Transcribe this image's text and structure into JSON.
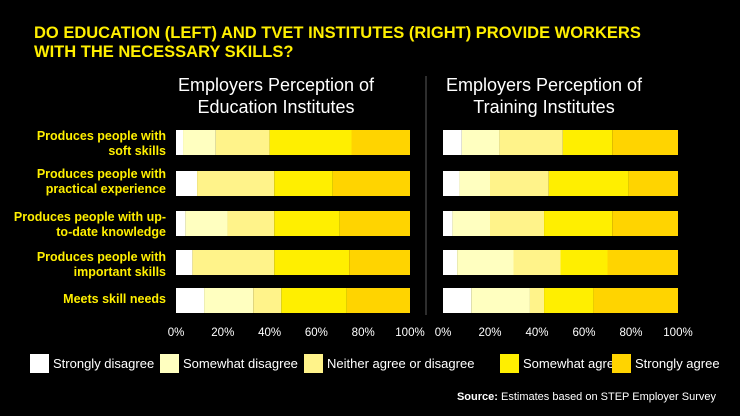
{
  "title": "DO EDUCATION (LEFT) AND TVET INSTITUTES (RIGHT) PROVIDE WORKERS WITH THE NECESSARY SKILLS?",
  "colors": {
    "Strongly disagree": "#ffffff",
    "Somewhat disagree": "#ffffc0",
    "Neither agree or disagree": "#fff38a",
    "Somewhat agree": "#ffef00",
    "Strongly agree": "#ffd400",
    "divider": "#5a5a5a"
  },
  "legend": [
    "Strongly disagree",
    "Somewhat disagree",
    "Neither agree or disagree",
    "Somewhat agree",
    "Strongly agree"
  ],
  "source": {
    "label": "Source:",
    "text": "Estimates based on STEP Employer Survey"
  },
  "chart_data": [
    {
      "type": "bar",
      "orientation": "horizontal",
      "stacked": true,
      "title": "Employers Perception of Education Institutes",
      "categories": [
        "Produces people with soft skills",
        "Produces people with practical experience",
        "Produces people with up-to-date knowledge",
        "Produces people with important skills",
        "Meets skill needs"
      ],
      "xlim": [
        0,
        100
      ],
      "ticks": [
        "0%",
        "20%",
        "40%",
        "60%",
        "80%",
        "100%"
      ],
      "series": [
        {
          "name": "Strongly disagree",
          "values": [
            3,
            9,
            4,
            7,
            12
          ]
        },
        {
          "name": "Somewhat disagree",
          "values": [
            14,
            0,
            18,
            0,
            21
          ]
        },
        {
          "name": "Neither agree or disagree",
          "values": [
            23,
            33,
            20,
            35,
            12
          ]
        },
        {
          "name": "Somewhat agree",
          "values": [
            35,
            25,
            28,
            32,
            28
          ]
        },
        {
          "name": "Strongly agree",
          "values": [
            25,
            33,
            30,
            26,
            27
          ]
        }
      ]
    },
    {
      "type": "bar",
      "orientation": "horizontal",
      "stacked": true,
      "title": "Employers Perception of Training Institutes",
      "categories": [
        "Produces people with soft skills",
        "Produces people with practical experience",
        "Produces people with up-to-date knowledge",
        "Produces people with important skills",
        "Meets skill needs"
      ],
      "xlim": [
        0,
        100
      ],
      "ticks": [
        "0%",
        "20%",
        "40%",
        "60%",
        "80%",
        "100%"
      ],
      "series": [
        {
          "name": "Strongly disagree",
          "values": [
            8,
            7,
            4,
            6,
            12
          ]
        },
        {
          "name": "Somewhat disagree",
          "values": [
            16,
            13,
            16,
            24,
            25
          ]
        },
        {
          "name": "Neither agree or disagree",
          "values": [
            27,
            25,
            23,
            20,
            6
          ]
        },
        {
          "name": "Somewhat agree",
          "values": [
            21,
            34,
            29,
            20,
            21
          ]
        },
        {
          "name": "Strongly agree",
          "values": [
            28,
            21,
            28,
            30,
            36
          ]
        }
      ]
    }
  ]
}
